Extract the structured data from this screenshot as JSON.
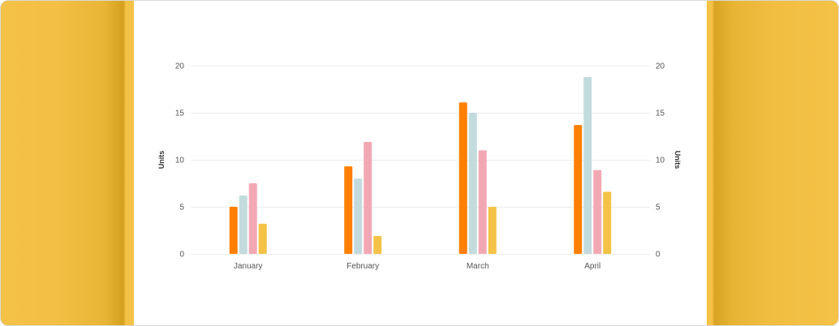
{
  "chart_data": {
    "type": "bar",
    "categories": [
      "January",
      "February",
      "March",
      "April"
    ],
    "series": [
      {
        "values": [
          5,
          9.3,
          16.1,
          13.7
        ]
      },
      {
        "values": [
          6.2,
          8,
          15,
          18.8
        ]
      },
      {
        "values": [
          7.5,
          11.9,
          11,
          8.9
        ]
      },
      {
        "values": [
          3.2,
          1.9,
          5,
          6.6
        ]
      }
    ],
    "colors": [
      "#ff8000",
      "#c3dbdd",
      "#f2a8b3",
      "#f4c246"
    ],
    "ylabel": "Units",
    "y2label": "Units",
    "ylim": [
      0,
      20
    ],
    "yticks": [
      "0",
      "5",
      "10",
      "15",
      "20"
    ],
    "grid": true,
    "legend": "none"
  }
}
